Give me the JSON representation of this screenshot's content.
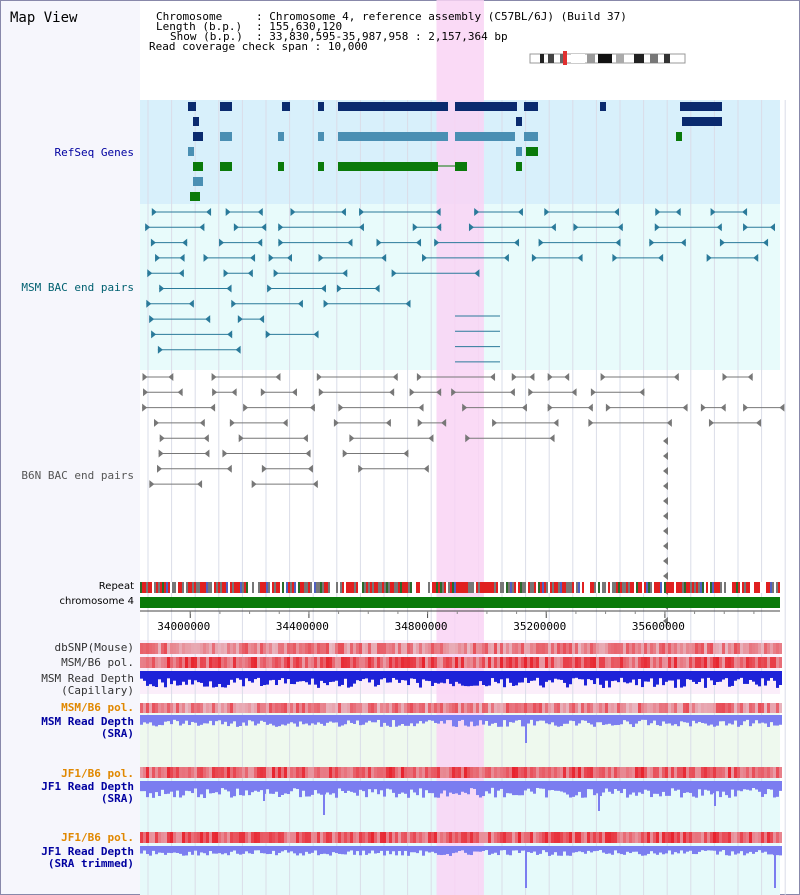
{
  "view_title": "Map View",
  "header": {
    "chromosome_key": "Chromosome",
    "chromosome_value": "Chromosome 4, reference assembly (C57BL/6J) (Build 37)",
    "length_key": "Length (b.p.)",
    "length_value": "155,630,120",
    "show_key": "Show (b.p.)",
    "show_value": "33,830,595-35,987,958 : 2,157,364 bp",
    "coverage_key": "Read coverage check span",
    "coverage_value": "10,000"
  },
  "ruler": {
    "start": 33830595,
    "end": 35987958,
    "ticks": [
      "34000000",
      "34400000",
      "34800000",
      "35200000",
      "35600000"
    ]
  },
  "highlight": {
    "start": 34830000,
    "end": 34990000
  },
  "tracks": {
    "refseq": "RefSeq Genes",
    "msm_bac": "MSM BAC end pairs",
    "b6n_bac": "B6N BAC end pairs",
    "repeat": "Repeat",
    "chromosome": "chromosome 4",
    "dbsnp": "dbSNP(Mouse)",
    "msm_b6_pol": "MSM/B6 pol.",
    "msm_depth_cap_1": "MSM Read Depth",
    "msm_depth_cap_2": "(Capillary)",
    "msm_b6_pol_2": "MSM/B6 pol.",
    "msm_depth_sra_1": "MSM Read Depth",
    "msm_depth_sra_2": "(SRA)",
    "jf1_pol_1": "JF1/B6 pol.",
    "jf1_depth_1": "JF1 Read Depth",
    "jf1_depth_2": "(SRA)",
    "jf1_pol_2": "JF1/B6 pol.",
    "jf1_trim_1": "JF1 Read Depth",
    "jf1_trim_2": "(SRA trimmed)"
  },
  "colors": {
    "refseq_bg": "#d8f0fb",
    "msm_bg": "#e8fbfb",
    "highlight": "#f9d3f4",
    "gene_dark": "#0a2a6e",
    "gene_mid": "#4a8fb3",
    "gene_green": "#0a7a0a",
    "bac_msm": "#2a7a9a",
    "bac_b6n": "#777777",
    "depth_blue": "#1e22d8",
    "depth_light": "#7b7df0",
    "pol_red": "#e8202a",
    "chrom_green": "#0a7a0a",
    "label_blue": "#0000a0",
    "label_teal": "#006070",
    "label_orange": "#e08800"
  }
}
